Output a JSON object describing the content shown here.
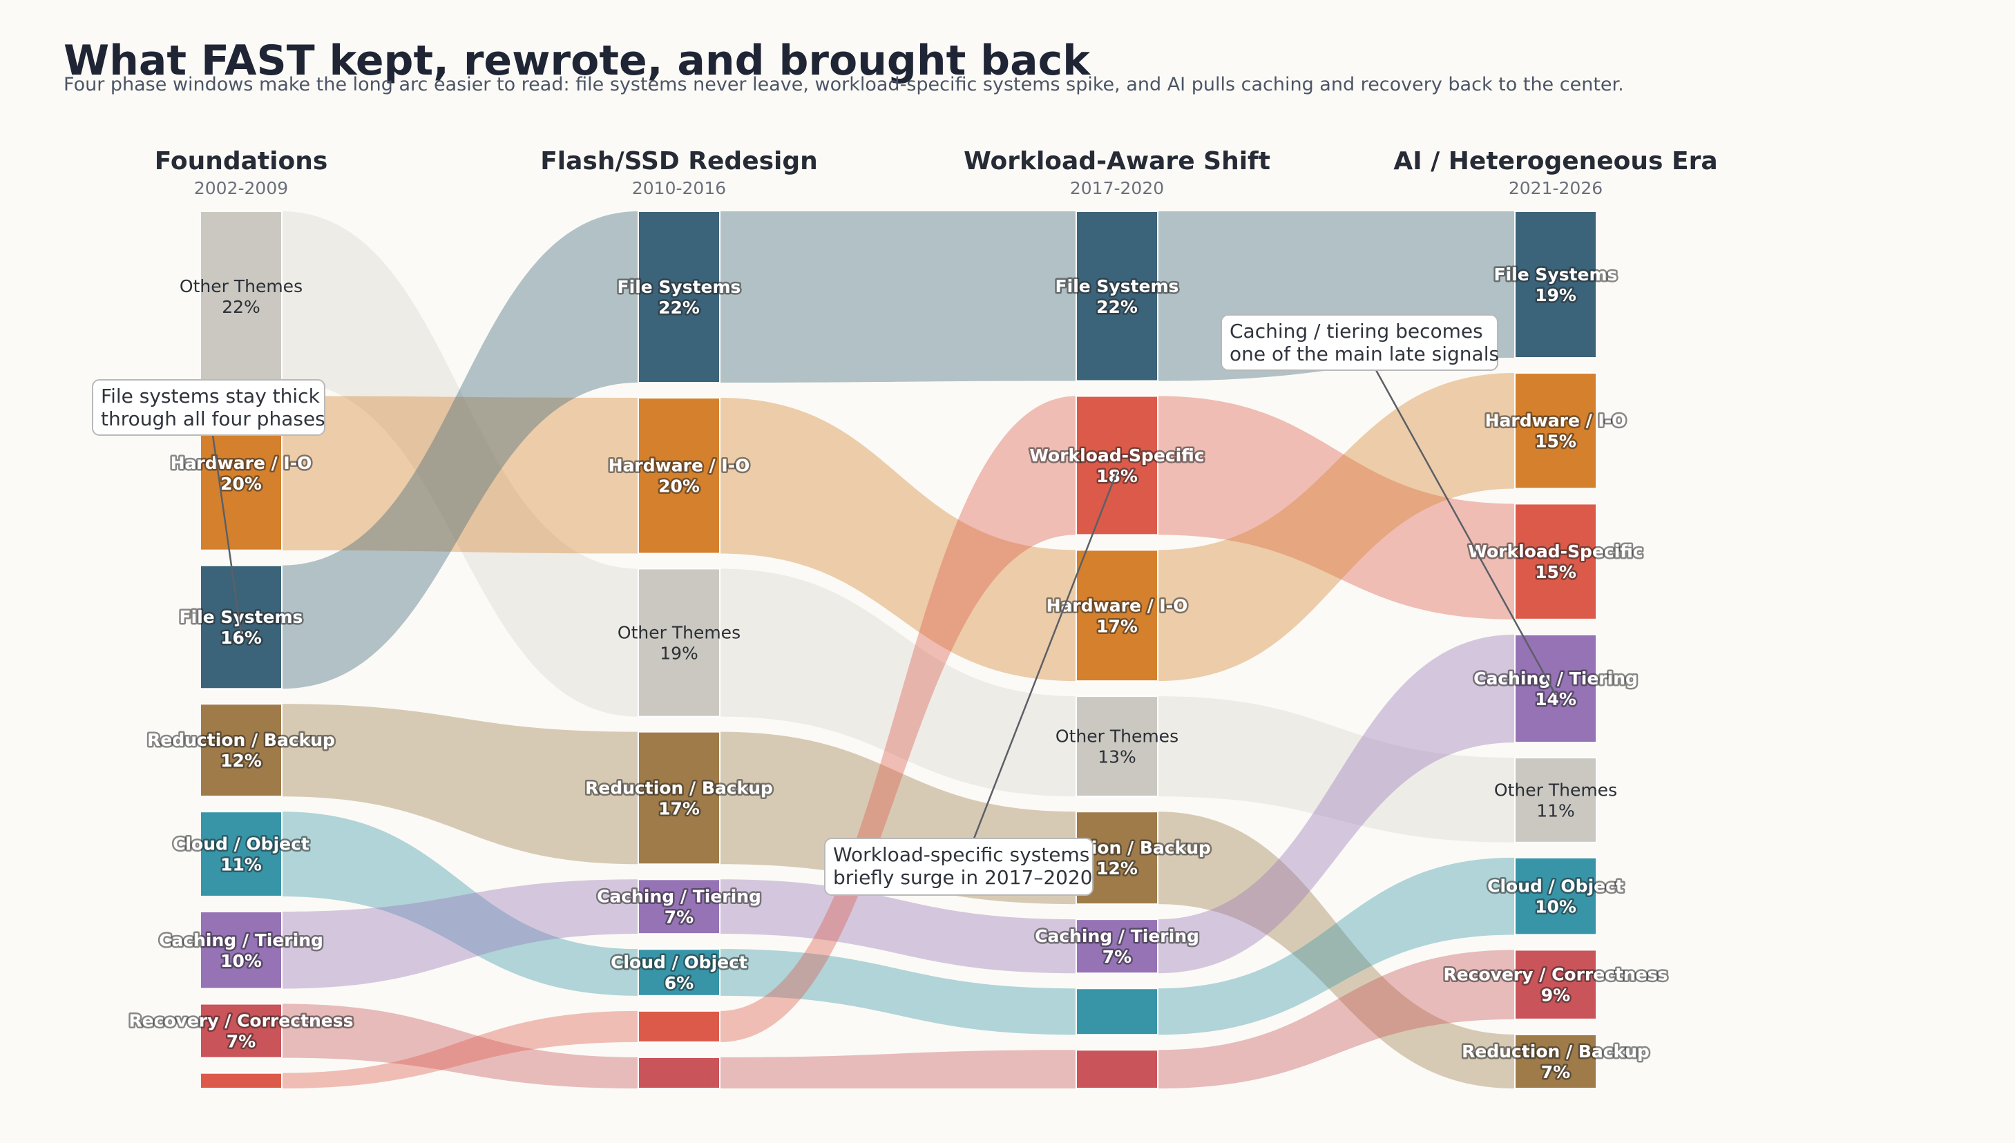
{
  "chart_data": {
    "type": "sankey",
    "title": "What FAST kept, rewrote, and brought back",
    "subtitle": "Four phase windows make the long arc easier to read: file systems never leave, workload-specific systems spike, and AI pulls caching and recovery back to the center.",
    "colors": {
      "File Systems": "#3b6379",
      "Hardware / I-O": "#d4802d",
      "Other Themes": "#cac8c1",
      "Reduction / Backup": "#9e7b49",
      "Cloud / Object": "#3895a8",
      "Caching / Tiering": "#9573b5",
      "Recovery / Correctness": "#c9545a",
      "Workload-Specific": "#dc5a49"
    },
    "phases": [
      {
        "name": "Foundations",
        "years": "2002-2009",
        "nodes": [
          {
            "theme": "Other Themes",
            "label": "Other Themes",
            "pct": 22,
            "pct_label": "22%"
          },
          {
            "theme": "Hardware / I-O",
            "label": "Hardware / I-O",
            "pct": 20,
            "pct_label": "20%"
          },
          {
            "theme": "File Systems",
            "label": "File Systems",
            "pct": 16,
            "pct_label": "16%"
          },
          {
            "theme": "Reduction / Backup",
            "label": "Reduction / Backup",
            "pct": 12,
            "pct_label": "12%"
          },
          {
            "theme": "Cloud / Object",
            "label": "Cloud / Object",
            "pct": 11,
            "pct_label": "11%"
          },
          {
            "theme": "Caching / Tiering",
            "label": "Caching / Tiering",
            "pct": 10,
            "pct_label": "10%"
          },
          {
            "theme": "Recovery / Correctness",
            "label": "Recovery / Correctness",
            "pct": 7,
            "pct_label": "7%"
          },
          {
            "theme": "Workload-Specific",
            "label": "",
            "pct": 2,
            "pct_label": ""
          }
        ]
      },
      {
        "name": "Flash/SSD Redesign",
        "years": "2010-2016",
        "nodes": [
          {
            "theme": "File Systems",
            "label": "File Systems",
            "pct": 22,
            "pct_label": "22%"
          },
          {
            "theme": "Hardware / I-O",
            "label": "Hardware / I-O",
            "pct": 20,
            "pct_label": "20%"
          },
          {
            "theme": "Other Themes",
            "label": "Other Themes",
            "pct": 19,
            "pct_label": "19%"
          },
          {
            "theme": "Reduction / Backup",
            "label": "Reduction / Backup",
            "pct": 17,
            "pct_label": "17%"
          },
          {
            "theme": "Caching / Tiering",
            "label": "Caching / Tiering",
            "pct": 7,
            "pct_label": "7%"
          },
          {
            "theme": "Cloud / Object",
            "label": "Cloud / Object",
            "pct": 6,
            "pct_label": "6%"
          },
          {
            "theme": "Workload-Specific",
            "label": "",
            "pct": 4,
            "pct_label": ""
          },
          {
            "theme": "Recovery / Correctness",
            "label": "",
            "pct": 4,
            "pct_label": ""
          }
        ]
      },
      {
        "name": "Workload-Aware Shift",
        "years": "2017-2020",
        "nodes": [
          {
            "theme": "File Systems",
            "label": "File Systems",
            "pct": 22,
            "pct_label": "22%"
          },
          {
            "theme": "Workload-Specific",
            "label": "Workload-Specific",
            "pct": 18,
            "pct_label": "18%"
          },
          {
            "theme": "Hardware / I-O",
            "label": "Hardware / I-O",
            "pct": 17,
            "pct_label": "17%"
          },
          {
            "theme": "Other Themes",
            "label": "Other Themes",
            "pct": 13,
            "pct_label": "13%"
          },
          {
            "theme": "Reduction / Backup",
            "label": "Reduction / Backup",
            "pct": 12,
            "pct_label": "12%"
          },
          {
            "theme": "Caching / Tiering",
            "label": "Caching / Tiering",
            "pct": 7,
            "pct_label": "7%"
          },
          {
            "theme": "Cloud / Object",
            "label": "",
            "pct": 6,
            "pct_label": ""
          },
          {
            "theme": "Recovery / Correctness",
            "label": "",
            "pct": 5,
            "pct_label": ""
          }
        ]
      },
      {
        "name": "AI / Heterogeneous Era",
        "years": "2021-2026",
        "nodes": [
          {
            "theme": "File Systems",
            "label": "File Systems",
            "pct": 19,
            "pct_label": "19%"
          },
          {
            "theme": "Hardware / I-O",
            "label": "Hardware / I-O",
            "pct": 15,
            "pct_label": "15%"
          },
          {
            "theme": "Workload-Specific",
            "label": "Workload-Specific",
            "pct": 15,
            "pct_label": "15%"
          },
          {
            "theme": "Caching / Tiering",
            "label": "Caching / Tiering",
            "pct": 14,
            "pct_label": "14%"
          },
          {
            "theme": "Other Themes",
            "label": "Other Themes",
            "pct": 11,
            "pct_label": "11%"
          },
          {
            "theme": "Cloud / Object",
            "label": "Cloud / Object",
            "pct": 10,
            "pct_label": "10%"
          },
          {
            "theme": "Recovery / Correctness",
            "label": "Recovery / Correctness",
            "pct": 9,
            "pct_label": "9%"
          },
          {
            "theme": "Reduction / Backup",
            "label": "Reduction / Backup",
            "pct": 7,
            "pct_label": "7%"
          }
        ]
      }
    ],
    "annotations": [
      {
        "lines": [
          "File systems stay thick",
          "through all four phases"
        ],
        "phase": 0,
        "theme": "File Systems"
      },
      {
        "lines": [
          "Caching / tiering becomes",
          "one of the main late signals"
        ],
        "phase": 3,
        "theme": "Caching / Tiering"
      },
      {
        "lines": [
          "Workload-specific systems",
          "briefly surge in 2017–2020"
        ],
        "phase": 2,
        "theme": "Workload-Specific"
      }
    ]
  }
}
